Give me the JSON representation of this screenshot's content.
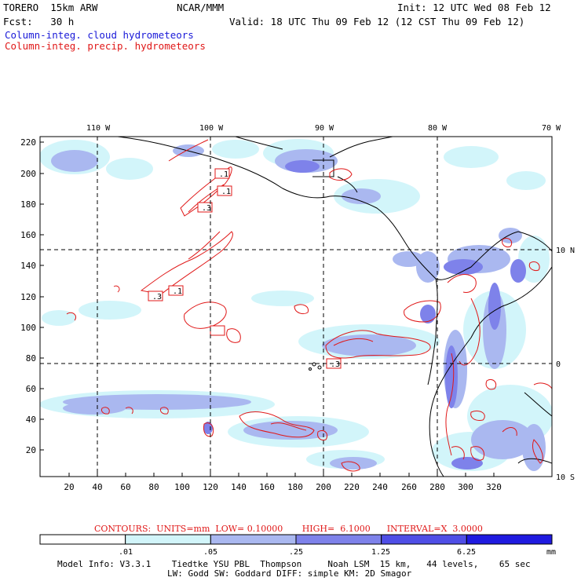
{
  "header": {
    "model": "TORERO  15km ARW",
    "org": "NCAR/MMM",
    "init": "Init: 12 UTC Wed 08 Feb 12",
    "fcst": "Fcst:   30 h",
    "valid": "Valid: 18 UTC Thu 09 Feb 12 (12 CST Thu 09 Feb 12)",
    "field_cloud": "Column-integ. cloud hydrometeors",
    "field_precip": "Column-integ. precip. hydrometeors"
  },
  "map": {
    "lon_labels_top": [
      "110 W",
      "100 W",
      "90 W",
      "80 W",
      "70 W"
    ],
    "lat_labels_right": [
      "10 N",
      "0",
      "10 S"
    ],
    "y_grid_labels": [
      "220",
      "200",
      "180",
      "160",
      "140",
      "120",
      "100",
      "80",
      "60",
      "40",
      "20"
    ],
    "x_grid_labels": [
      "20",
      "40",
      "60",
      "80",
      "100",
      "120",
      "140",
      "160",
      "180",
      "200",
      "220",
      "240",
      "260",
      "280",
      "300",
      "320"
    ],
    "contour_value_labels": [
      ".1",
      ".1",
      ".3",
      ".3",
      ".1",
      ".3"
    ]
  },
  "contours": {
    "line": "CONTOURS:  UNITS=mm  LOW= 0.10000       HIGH=  6.1000      INTERVAL=X  3.0000"
  },
  "colorbar": {
    "ticks": [
      ".01",
      ".05",
      ".25",
      "1.25",
      "6.25"
    ],
    "units": "mm",
    "colors": [
      "#ffffff",
      "#d2f5fa",
      "#aab8f0",
      "#7e82ea",
      "#4f4ee6",
      "#1f1ae0"
    ]
  },
  "model_info": {
    "line1": "Model Info: V3.3.1    Tiedtke YSU PBL  Thompson     Noah LSM  15 km,   44 levels,    65 sec",
    "line2": "LW: Godd SW: Goddard DIFF: simple KM: 2D Smagor"
  }
}
